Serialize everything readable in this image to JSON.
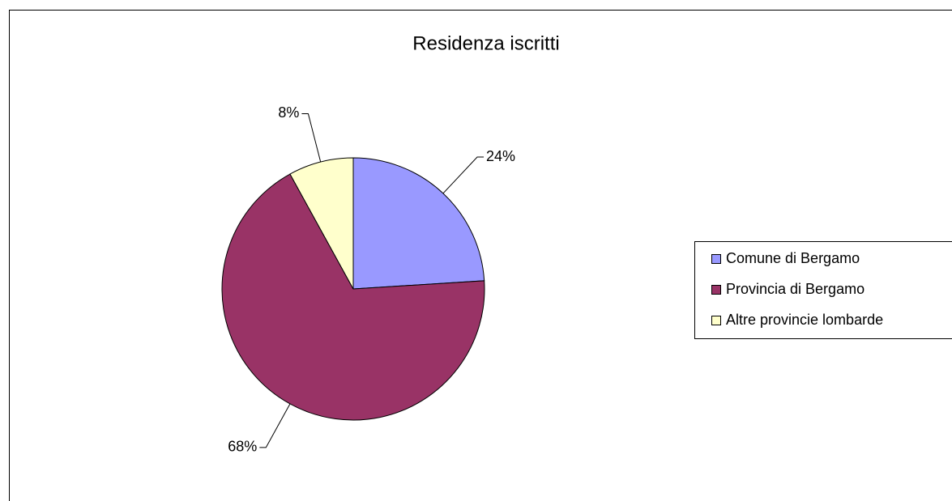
{
  "chart_data": {
    "type": "pie",
    "title": "Residenza iscritti",
    "categories": [
      "Comune di Bergamo",
      "Provincia di Bergamo",
      "Altre provincie lombarde"
    ],
    "values": [
      24,
      68,
      8
    ],
    "value_labels": [
      "24%",
      "68%",
      "8%"
    ],
    "colors": [
      "#9999ff",
      "#993366",
      "#ffffcc"
    ],
    "legend": "right"
  }
}
